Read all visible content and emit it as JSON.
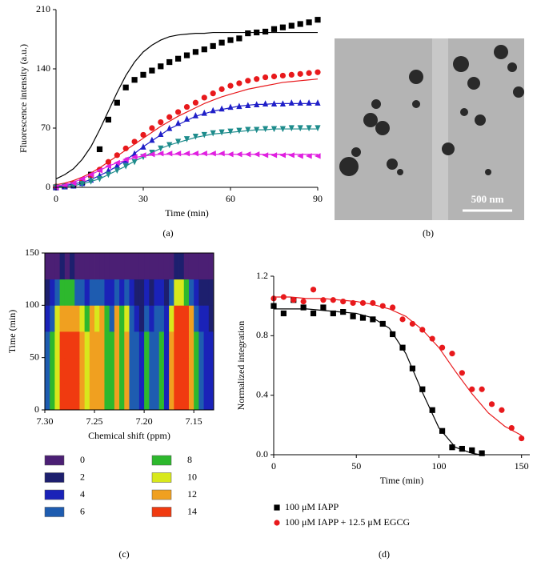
{
  "chart_data": [
    {
      "type": "scatter",
      "xlabel": "Time (min)",
      "ylabel": "Fluorescence intensity (a.u.)",
      "xlim": [
        0,
        90
      ],
      "ylim": [
        0,
        210
      ],
      "xticks": [
        0,
        30,
        60,
        90
      ],
      "yticks": [
        0,
        70,
        140,
        210
      ],
      "x": [
        0,
        3,
        6,
        9,
        12,
        15,
        18,
        21,
        24,
        27,
        30,
        33,
        36,
        39,
        42,
        45,
        48,
        51,
        54,
        57,
        60,
        63,
        66,
        69,
        72,
        75,
        78,
        81,
        84,
        87,
        90
      ],
      "series": [
        {
          "color": "#000000",
          "marker": "square",
          "values": [
            0,
            1,
            3,
            6,
            15,
            45,
            80,
            100,
            118,
            127,
            133,
            138,
            143,
            148,
            152,
            156,
            160,
            163,
            167,
            171,
            174,
            176,
            182,
            183,
            184,
            187,
            189,
            191,
            193,
            195,
            198
          ],
          "fit": [
            10,
            15,
            22,
            33,
            48,
            68,
            90,
            112,
            132,
            148,
            160,
            168,
            174,
            178,
            180,
            181,
            182,
            182,
            183,
            183,
            183,
            183,
            183,
            183,
            183,
            183,
            183,
            183,
            183,
            183,
            183
          ]
        },
        {
          "color": "#e8191c",
          "marker": "circle",
          "values": [
            1,
            2,
            4,
            8,
            14,
            21,
            30,
            38,
            46,
            54,
            62,
            70,
            77,
            83,
            89,
            95,
            100,
            106,
            111,
            116,
            120,
            123,
            126,
            128,
            130,
            131,
            132,
            133,
            134,
            135,
            136
          ],
          "fit": [
            3,
            5,
            8,
            12,
            17,
            23,
            30,
            37,
            44,
            51,
            58,
            65,
            72,
            78,
            84,
            89,
            94,
            99,
            103,
            107,
            110,
            113,
            116,
            118,
            120,
            122,
            124,
            125,
            126,
            127,
            128
          ]
        },
        {
          "color": "#1f1fc8",
          "marker": "triangle-up",
          "values": [
            0,
            1,
            2,
            5,
            9,
            14,
            20,
            26,
            32,
            40,
            48,
            56,
            63,
            70,
            76,
            81,
            85,
            88,
            91,
            93,
            95,
            96,
            97,
            98,
            99,
            99,
            99,
            100,
            100,
            100,
            100
          ],
          "fit": [
            1,
            2,
            4,
            6,
            9,
            14,
            19,
            25,
            32,
            40,
            48,
            55,
            62,
            69,
            74,
            79,
            84,
            87,
            90,
            92,
            94,
            96,
            97,
            98,
            98,
            99,
            99,
            99,
            99,
            99,
            99
          ]
        },
        {
          "color": "#1e8c8c",
          "marker": "triangle-down",
          "values": [
            0,
            1,
            2,
            4,
            7,
            10,
            15,
            20,
            25,
            30,
            36,
            41,
            46,
            50,
            54,
            57,
            60,
            62,
            64,
            65,
            66,
            67,
            68,
            68,
            69,
            69,
            69,
            70,
            70,
            70,
            70
          ],
          "fit": [
            1,
            1,
            2,
            4,
            7,
            10,
            15,
            20,
            25,
            31,
            36,
            41,
            46,
            50,
            53,
            56,
            59,
            61,
            63,
            64,
            65,
            66,
            67,
            68,
            68,
            69,
            69,
            69,
            69,
            69,
            69
          ]
        },
        {
          "color": "#e020e0",
          "marker": "triangle-left",
          "values": [
            0,
            2,
            5,
            10,
            15,
            20,
            25,
            29,
            33,
            36,
            38,
            39,
            40,
            40,
            40,
            40,
            40,
            40,
            40,
            40,
            39,
            39,
            39,
            39,
            38,
            38,
            38,
            38,
            37,
            37,
            37
          ],
          "fit": [
            2,
            3,
            6,
            10,
            15,
            20,
            25,
            29,
            32,
            35,
            37,
            38,
            39,
            39,
            39,
            39,
            39,
            39,
            39,
            39,
            39,
            39,
            39,
            39,
            39,
            39,
            39,
            39,
            39,
            39,
            39
          ]
        }
      ]
    },
    {
      "type": "heatmap",
      "xlabel": "Chemical shift (ppm)",
      "ylabel": "Time (min)",
      "xlim": [
        7.3,
        7.13
      ],
      "ylim": [
        0,
        150
      ],
      "xticks": [
        {
          "value": 7.3,
          "label": "7.30"
        },
        7.25,
        {
          "value": 7.2,
          "label": "7.20"
        },
        7.15
      ],
      "yticks": [
        0,
        50,
        100,
        150
      ],
      "x_edges": [
        7.3,
        7.295,
        7.29,
        7.285,
        7.28,
        7.275,
        7.27,
        7.265,
        7.26,
        7.255,
        7.25,
        7.245,
        7.24,
        7.235,
        7.23,
        7.225,
        7.22,
        7.215,
        7.21,
        7.205,
        7.2,
        7.195,
        7.19,
        7.185,
        7.18,
        7.175,
        7.17,
        7.165,
        7.16,
        7.155,
        7.15,
        7.145,
        7.14,
        7.135,
        7.13
      ],
      "y_edges": [
        0,
        25,
        50,
        75,
        100,
        125,
        150
      ],
      "z": [
        [
          6,
          8,
          11,
          14,
          14,
          14,
          14,
          12,
          10,
          13,
          12,
          13,
          9,
          8,
          13,
          9,
          12,
          7,
          6,
          4,
          8,
          6,
          7,
          8,
          5,
          12,
          14,
          14,
          14,
          13,
          8,
          6,
          5,
          4
        ],
        [
          6,
          8,
          11,
          14,
          14,
          14,
          14,
          12,
          10,
          13,
          12,
          13,
          9,
          8,
          13,
          9,
          12,
          7,
          6,
          4,
          8,
          6,
          7,
          8,
          5,
          12,
          14,
          14,
          14,
          13,
          8,
          6,
          5,
          4
        ],
        [
          6,
          8,
          11,
          14,
          14,
          14,
          14,
          12,
          10,
          13,
          12,
          13,
          9,
          8,
          13,
          9,
          12,
          7,
          6,
          4,
          8,
          6,
          7,
          8,
          5,
          12,
          14,
          14,
          14,
          13,
          8,
          6,
          5,
          4
        ],
        [
          5,
          7,
          10,
          13,
          13,
          13,
          13,
          11,
          9,
          12,
          11,
          12,
          8,
          7,
          12,
          8,
          11,
          6,
          5,
          3,
          7,
          5,
          6,
          7,
          4,
          11,
          14,
          14,
          14,
          12,
          7,
          5,
          4,
          3
        ],
        [
          3,
          5,
          6,
          8,
          9,
          8,
          7,
          6,
          5,
          7,
          6,
          7,
          5,
          4,
          7,
          5,
          6,
          4,
          3,
          2,
          4,
          3,
          4,
          4,
          3,
          7,
          10,
          11,
          9,
          7,
          4,
          3,
          2,
          2
        ],
        [
          1,
          1,
          1,
          2,
          1,
          2,
          1,
          1,
          1,
          1,
          1,
          1,
          1,
          1,
          1,
          1,
          1,
          1,
          0,
          0,
          1,
          0,
          1,
          1,
          0,
          1,
          2,
          2,
          1,
          1,
          1,
          0,
          0,
          0
        ]
      ],
      "levels": [
        0,
        2,
        4,
        6,
        8,
        10,
        12,
        14
      ],
      "colors": [
        "#4b1f74",
        "#1d1f6e",
        "#1a22b8",
        "#1e5cb0",
        "#2db82d",
        "#d8e81c",
        "#f0a020",
        "#f03a10"
      ]
    },
    {
      "type": "scatter",
      "xlabel": "Time (min)",
      "ylabel": "Normalized integration",
      "xlim": [
        0,
        155
      ],
      "ylim": [
        0,
        1.2
      ],
      "xticks": [
        0,
        50,
        100,
        150
      ],
      "yticks": [
        {
          "value": 0,
          "label": "0.0"
        },
        0.4,
        0.8,
        1.2
      ],
      "series": [
        {
          "name": "100 μM IAPP",
          "color": "#000000",
          "marker": "square",
          "x": [
            0,
            6,
            12,
            18,
            24,
            30,
            36,
            42,
            48,
            54,
            60,
            66,
            72,
            78,
            84,
            90,
            96,
            102,
            108,
            114,
            120,
            126
          ],
          "values": [
            1.0,
            0.95,
            1.04,
            0.99,
            0.95,
            0.99,
            0.95,
            0.96,
            0.93,
            0.92,
            0.91,
            0.88,
            0.81,
            0.72,
            0.58,
            0.44,
            0.3,
            0.16,
            0.05,
            0.04,
            0.03,
            0.01
          ],
          "fit_x": [
            0,
            10,
            20,
            30,
            40,
            50,
            60,
            70,
            80,
            90,
            100,
            110,
            120,
            125
          ],
          "fit": [
            0.98,
            0.98,
            0.98,
            0.97,
            0.96,
            0.95,
            0.92,
            0.85,
            0.68,
            0.42,
            0.18,
            0.05,
            0.01,
            0.0
          ]
        },
        {
          "name": "100 μM IAPP + 12.5 μM EGCG",
          "color": "#e8191c",
          "marker": "circle",
          "x": [
            0,
            6,
            12,
            18,
            24,
            30,
            36,
            42,
            48,
            54,
            60,
            66,
            72,
            78,
            84,
            90,
            96,
            102,
            108,
            114,
            120,
            126,
            132,
            138,
            144,
            150
          ],
          "values": [
            1.05,
            1.06,
            1.04,
            1.03,
            1.11,
            1.04,
            1.04,
            1.03,
            1.02,
            1.02,
            1.02,
            1.0,
            0.99,
            0.91,
            0.88,
            0.84,
            0.78,
            0.72,
            0.68,
            0.55,
            0.44,
            0.44,
            0.34,
            0.3,
            0.18,
            0.11
          ],
          "fit_x": [
            0,
            10,
            20,
            30,
            40,
            50,
            60,
            70,
            80,
            90,
            100,
            110,
            120,
            130,
            140,
            150
          ],
          "fit": [
            1.06,
            1.06,
            1.05,
            1.05,
            1.04,
            1.03,
            1.01,
            0.98,
            0.93,
            0.84,
            0.72,
            0.56,
            0.41,
            0.28,
            0.19,
            0.13
          ]
        }
      ]
    }
  ],
  "image": {
    "scale_label": "500 nm"
  },
  "panel_labels": [
    "(a)",
    "(b)",
    "(c)",
    "(d)"
  ]
}
